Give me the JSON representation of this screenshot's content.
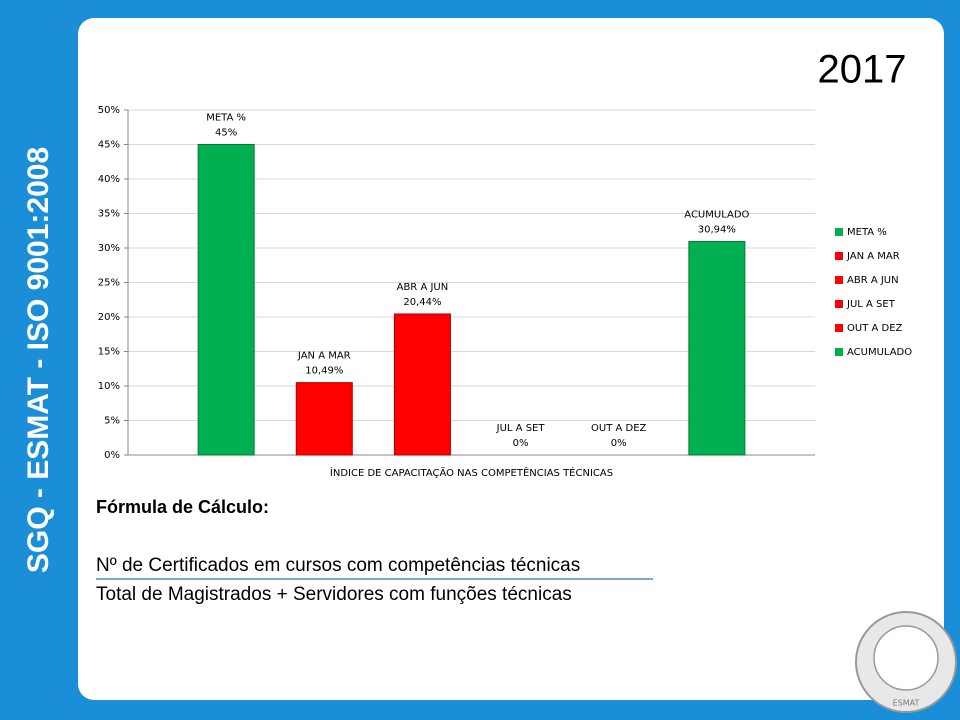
{
  "sidebar": "SGQ - ESMAT - ISO 9001:2008",
  "year": "2017",
  "formula": {
    "title": "Fórmula de Cálculo:",
    "numerator": "Nº de Certificados em cursos com competências técnicas",
    "denominator": "Total de Magistrados  + Servidores com funções técnicas"
  },
  "logo": "ESMAT",
  "chart_data": {
    "type": "bar",
    "x_label": "ÍNDICE DE CAPACITAÇÃO NAS COMPETÊNCIAS TÉCNICAS",
    "categories": [
      "META %",
      "JAN A MAR",
      "ABR A JUN",
      "JUL A SET",
      "OUT A DEZ",
      "ACUMULADO"
    ],
    "values": [
      45,
      10.49,
      20.44,
      0,
      0,
      30.94
    ],
    "value_labels": [
      "45%",
      "10,49%",
      "20,44%",
      "0%",
      "0%",
      "30,94%"
    ],
    "colors": [
      "#00b050",
      "#ff0000",
      "#ff0000",
      "#ff0000",
      "#ff0000",
      "#00b050"
    ],
    "ylim": [
      0,
      50
    ],
    "yticks": [
      {
        "value": 0,
        "label": "0%"
      },
      {
        "value": 5,
        "label": "5%"
      },
      {
        "value": 10,
        "label": "10%"
      },
      {
        "value": 15,
        "label": "15%"
      },
      {
        "value": 20,
        "label": "20%"
      },
      {
        "value": 25,
        "label": "25%"
      },
      {
        "value": 30,
        "label": "30%"
      },
      {
        "value": 35,
        "label": "35%"
      },
      {
        "value": 40,
        "label": "40%"
      },
      {
        "value": 45,
        "label": "45%"
      },
      {
        "value": 50,
        "label": "50%"
      }
    ],
    "grid": true,
    "legend": "right"
  }
}
